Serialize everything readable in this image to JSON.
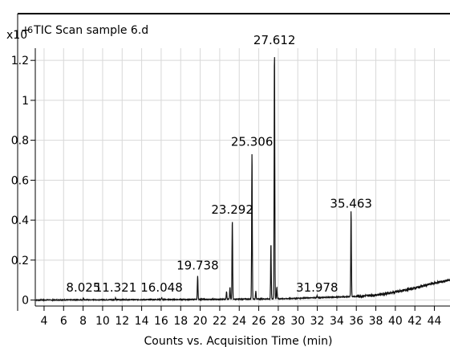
{
  "chart_data": {
    "type": "line",
    "title": "+ TIC Scan sample 6.d",
    "scale_label": "x10",
    "scale_exponent": "6",
    "xlabel": "Counts vs. Acquisition Time (min)",
    "ylabel": "",
    "xlim": [
      3.1,
      45.6
    ],
    "ylim": [
      -0.03,
      1.43
    ],
    "xticks": [
      4,
      6,
      8,
      10,
      12,
      14,
      16,
      18,
      20,
      22,
      24,
      26,
      28,
      30,
      32,
      34,
      36,
      38,
      40,
      42,
      44
    ],
    "yticks": [
      0,
      0.2,
      0.4,
      0.6,
      0.8,
      1,
      1.2
    ],
    "ytick_labels": [
      "0",
      "0.2",
      "0.4",
      "0.6",
      "0.8",
      "1",
      "1.2"
    ],
    "grid": true,
    "line_color": "#111111",
    "peaks": [
      {
        "label": "8.025",
        "x": 8.025,
        "y": 0.01
      },
      {
        "label": "11.321",
        "x": 11.321,
        "y": 0.01
      },
      {
        "label": "16.048",
        "x": 16.048,
        "y": 0.01
      },
      {
        "label": "19.738",
        "x": 19.738,
        "y": 0.12
      },
      {
        "label": "23.292",
        "x": 23.292,
        "y": 0.4
      },
      {
        "label": "25.306",
        "x": 25.306,
        "y": 0.74
      },
      {
        "label": "27.612",
        "x": 27.612,
        "y": 1.25
      },
      {
        "label": "31.978",
        "x": 31.978,
        "y": 0.01
      },
      {
        "label": "35.463",
        "x": 35.463,
        "y": 0.43
      }
    ],
    "minor_peaks": [
      {
        "x": 22.7,
        "y": 0.04
      },
      {
        "x": 23.05,
        "y": 0.06
      },
      {
        "x": 25.7,
        "y": 0.04
      },
      {
        "x": 27.25,
        "y": 0.28
      },
      {
        "x": 27.85,
        "y": 0.06
      }
    ],
    "baseline": [
      [
        3.1,
        0.0
      ],
      [
        20,
        0.003
      ],
      [
        28,
        0.006
      ],
      [
        32,
        0.012
      ],
      [
        36,
        0.018
      ],
      [
        38,
        0.025
      ],
      [
        40,
        0.04
      ],
      [
        42,
        0.06
      ],
      [
        44,
        0.085
      ],
      [
        45.6,
        0.1
      ]
    ]
  }
}
